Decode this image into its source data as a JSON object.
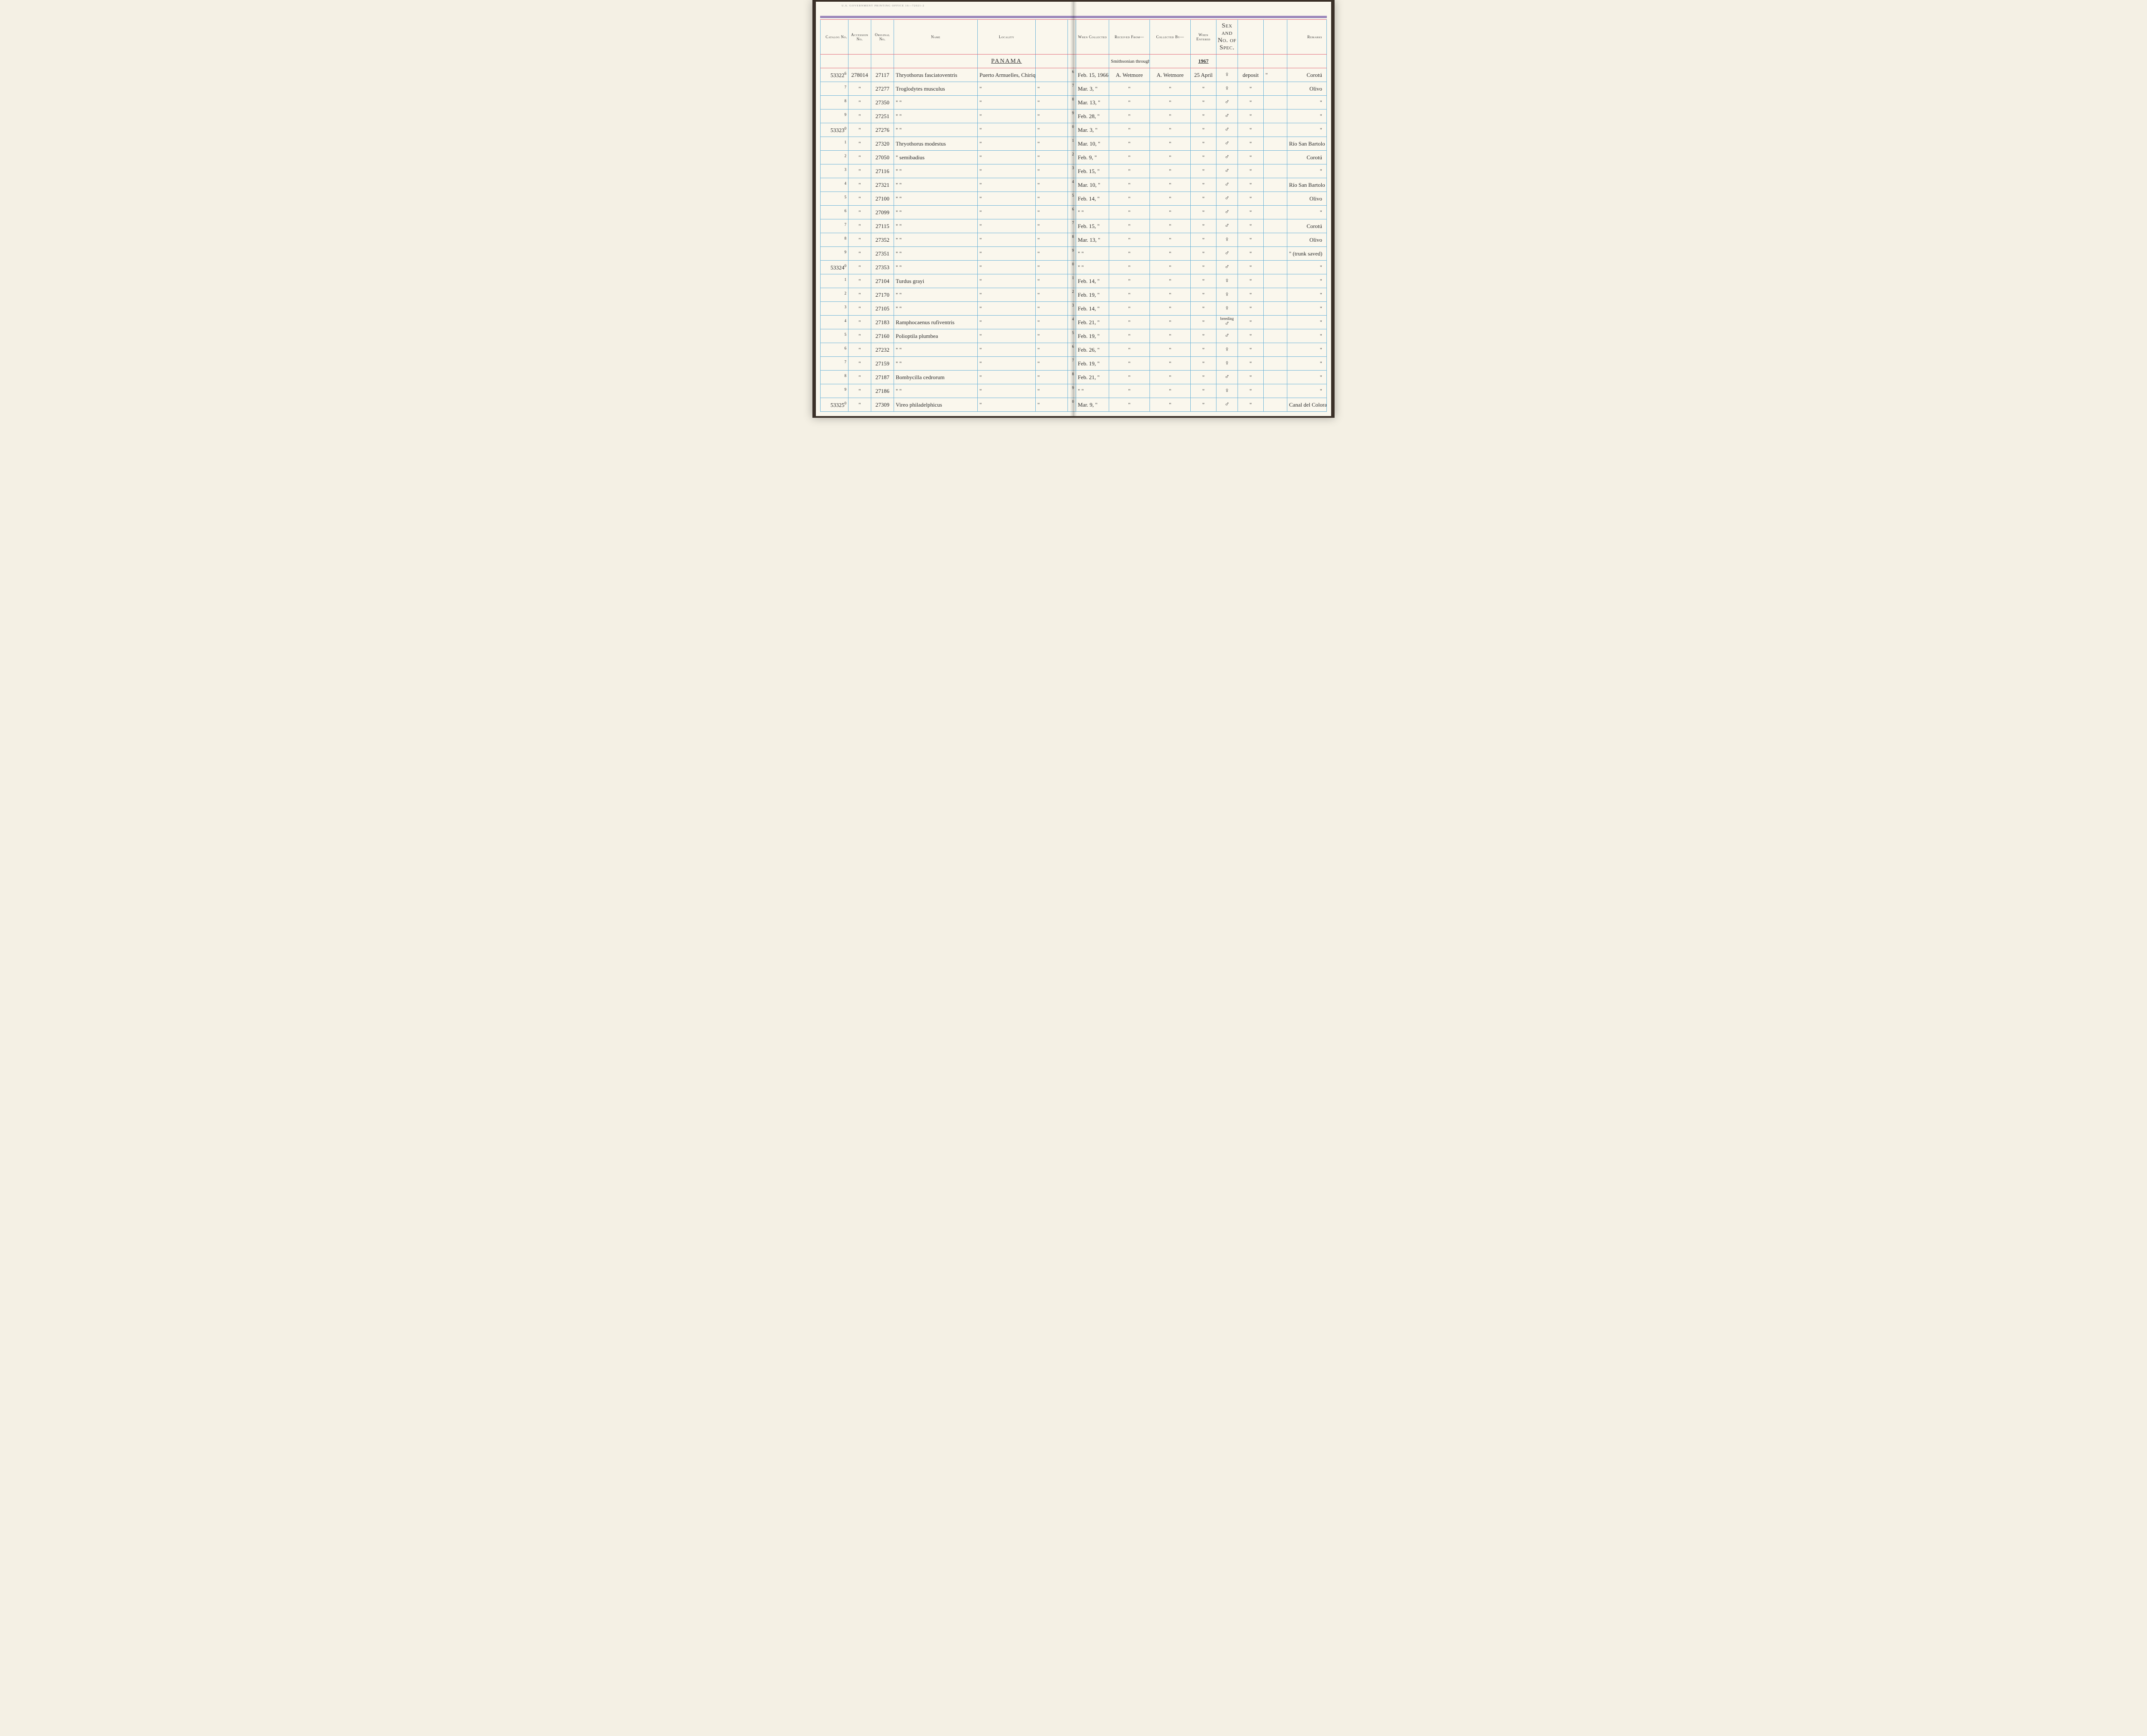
{
  "print_note": "U.S. Government Printing Office  16—72021-2",
  "columns": {
    "catalog": "Catalog No.",
    "accession": "Accession No.",
    "original": "Original No.",
    "name": "Name",
    "locality": "Locality",
    "collected": "When Collected",
    "received": "Received From—",
    "collby": "Collected By—",
    "entered": "When Entered",
    "sex": "Sex and No. of Spec.",
    "remarks": "Remarks"
  },
  "header_row": {
    "locality": "PANAMA",
    "received": "Smithsonian through",
    "entered": "1967"
  },
  "rows": [
    {
      "catalog": "53322",
      "catalog_sup": "6",
      "accession": "278014",
      "original": "27117",
      "name": "Thryothorus fasciatoventris",
      "locality": "Puerto Armuelles, Chiriquí",
      "blank1": "",
      "sup": "6",
      "collected": "Feb. 15, 1966",
      "received": "A. Wetmore",
      "collby": "A. Wetmore",
      "entered": "25 April",
      "sex": "♀",
      "blank2": "deposit",
      "blank3": "\"",
      "remarks": "Corotú"
    },
    {
      "catalog": "",
      "catalog_sup": "7",
      "accession": "\"",
      "original": "27277",
      "name": "Troglodytes musculus",
      "locality": "\"",
      "blank1": "\"",
      "sup": "7",
      "collected": "Mar. 3, \"",
      "received": "\"",
      "collby": "\"",
      "entered": "\"",
      "sex": "♀",
      "blank2": "\"",
      "blank3": "",
      "remarks": "Olivo"
    },
    {
      "catalog": "",
      "catalog_sup": "8",
      "accession": "\"",
      "original": "27350",
      "name": "\"        \"",
      "locality": "\"",
      "blank1": "\"",
      "sup": "8",
      "collected": "Mar. 13, \"",
      "received": "\"",
      "collby": "\"",
      "entered": "\"",
      "sex": "♂",
      "blank2": "\"",
      "blank3": "",
      "remarks": "\""
    },
    {
      "catalog": "",
      "catalog_sup": "9",
      "accession": "\"",
      "original": "27251",
      "name": "\"        \"",
      "locality": "\"",
      "blank1": "\"",
      "sup": "9",
      "collected": "Feb. 28, \"",
      "received": "\"",
      "collby": "\"",
      "entered": "\"",
      "sex": "♂",
      "blank2": "\"",
      "blank3": "",
      "remarks": "\""
    },
    {
      "catalog": "53323",
      "catalog_sup": "0",
      "accession": "\"",
      "original": "27276",
      "name": "\"        \"",
      "locality": "\"",
      "blank1": "\"",
      "sup": "0",
      "collected": "Mar. 3, \"",
      "received": "\"",
      "collby": "\"",
      "entered": "\"",
      "sex": "♂",
      "blank2": "\"",
      "blank3": "",
      "remarks": "\""
    },
    {
      "catalog": "",
      "catalog_sup": "1",
      "accession": "\"",
      "original": "27320",
      "name": "Thryothorus modestus",
      "locality": "\"",
      "blank1": "\"",
      "sup": "1",
      "collected": "Mar. 10, \"",
      "received": "\"",
      "collby": "\"",
      "entered": "\"",
      "sex": "♂",
      "blank2": "\"",
      "blank3": "",
      "remarks": "Río San Bartolo"
    },
    {
      "catalog": "",
      "catalog_sup": "2",
      "accession": "\"",
      "original": "27050",
      "name": "\"     semibadius",
      "locality": "\"",
      "blank1": "\"",
      "sup": "2",
      "collected": "Feb. 9, \"",
      "received": "\"",
      "collby": "\"",
      "entered": "\"",
      "sex": "♂",
      "blank2": "\"",
      "blank3": "",
      "remarks": "Corotú"
    },
    {
      "catalog": "",
      "catalog_sup": "3",
      "accession": "\"",
      "original": "27116",
      "name": "\"        \"",
      "locality": "\"",
      "blank1": "\"",
      "sup": "3",
      "collected": "Feb. 15, \"",
      "received": "\"",
      "collby": "\"",
      "entered": "\"",
      "sex": "♂",
      "blank2": "\"",
      "blank3": "",
      "remarks": "\""
    },
    {
      "catalog": "",
      "catalog_sup": "4",
      "accession": "\"",
      "original": "27321",
      "name": "\"        \"",
      "locality": "\"",
      "blank1": "\"",
      "sup": "4",
      "collected": "Mar. 10, \"",
      "received": "\"",
      "collby": "\"",
      "entered": "\"",
      "sex": "♂",
      "blank2": "\"",
      "blank3": "",
      "remarks": "Río San Bartolo"
    },
    {
      "catalog": "",
      "catalog_sup": "5",
      "accession": "\"",
      "original": "27100",
      "name": "\"        \"",
      "locality": "\"",
      "blank1": "\"",
      "sup": "5",
      "collected": "Feb. 14, \"",
      "received": "\"",
      "collby": "\"",
      "entered": "\"",
      "sex": "♂",
      "blank2": "\"",
      "blank3": "",
      "remarks": "Olivo"
    },
    {
      "catalog": "",
      "catalog_sup": "6",
      "accession": "\"",
      "original": "27099",
      "name": "\"        \"",
      "locality": "\"",
      "blank1": "\"",
      "sup": "6",
      "collected": "\"    \"",
      "received": "\"",
      "collby": "\"",
      "entered": "\"",
      "sex": "♂",
      "blank2": "\"",
      "blank3": "",
      "remarks": "\""
    },
    {
      "catalog": "",
      "catalog_sup": "7",
      "accession": "\"",
      "original": "27115",
      "name": "\"        \"",
      "locality": "\"",
      "blank1": "\"",
      "sup": "7",
      "collected": "Feb. 15, \"",
      "received": "\"",
      "collby": "\"",
      "entered": "\"",
      "sex": "♂",
      "blank2": "\"",
      "blank3": "",
      "remarks": "Corotú"
    },
    {
      "catalog": "",
      "catalog_sup": "8",
      "accession": "\"",
      "original": "27352",
      "name": "\"        \"",
      "locality": "\"",
      "blank1": "\"",
      "sup": "8",
      "collected": "Mar. 13, \"",
      "received": "\"",
      "collby": "\"",
      "entered": "\"",
      "sex": "♀",
      "blank2": "\"",
      "blank3": "",
      "remarks": "Olivo"
    },
    {
      "catalog": "",
      "catalog_sup": "9",
      "accession": "\"",
      "original": "27351",
      "name": "\"        \"",
      "locality": "\"",
      "blank1": "\"",
      "sup": "9",
      "collected": "\"    \"",
      "received": "\"",
      "collby": "\"",
      "entered": "\"",
      "sex": "♂",
      "blank2": "\"",
      "blank3": "",
      "remarks": "\"  (trunk saved)"
    },
    {
      "catalog": "53324",
      "catalog_sup": "0",
      "accession": "\"",
      "original": "27353",
      "name": "\"        \"",
      "locality": "\"",
      "blank1": "\"",
      "sup": "0",
      "collected": "\"    \"",
      "received": "\"",
      "collby": "\"",
      "entered": "\"",
      "sex": "♂",
      "blank2": "\"",
      "blank3": "",
      "remarks": "\""
    },
    {
      "catalog": "",
      "catalog_sup": "1",
      "accession": "\"",
      "original": "27104",
      "name": "Turdus grayi",
      "locality": "\"",
      "blank1": "\"",
      "sup": "1",
      "collected": "Feb. 14, \"",
      "received": "\"",
      "collby": "\"",
      "entered": "\"",
      "sex": "♀",
      "blank2": "\"",
      "blank3": "",
      "remarks": "\""
    },
    {
      "catalog": "",
      "catalog_sup": "2",
      "accession": "\"",
      "original": "27170",
      "name": "\"        \"",
      "locality": "\"",
      "blank1": "\"",
      "sup": "2",
      "collected": "Feb. 19, \"",
      "received": "\"",
      "collby": "\"",
      "entered": "\"",
      "sex": "♀",
      "blank2": "\"",
      "blank3": "",
      "remarks": "\""
    },
    {
      "catalog": "",
      "catalog_sup": "3",
      "accession": "\"",
      "original": "27105",
      "name": "\"        \"",
      "locality": "\"",
      "blank1": "\"",
      "sup": "3",
      "collected": "Feb. 14, \"",
      "received": "\"",
      "collby": "\"",
      "entered": "\"",
      "sex": "♀",
      "blank2": "\"",
      "blank3": "",
      "remarks": "\""
    },
    {
      "catalog": "",
      "catalog_sup": "4",
      "accession": "\"",
      "original": "27183",
      "name": "Ramphocaenus rufiventris",
      "locality": "\"",
      "blank1": "\"",
      "sup": "4",
      "collected": "Feb. 21, \"",
      "received": "\"",
      "collby": "\"",
      "entered": "\"",
      "sex": "♂",
      "sex_note": "breeding",
      "blank2": "\"",
      "blank3": "",
      "remarks": "\""
    },
    {
      "catalog": "",
      "catalog_sup": "5",
      "accession": "\"",
      "original": "27160",
      "name": "Polioptila plumbea",
      "locality": "\"",
      "blank1": "\"",
      "sup": "5",
      "collected": "Feb. 19, \"",
      "received": "\"",
      "collby": "\"",
      "entered": "\"",
      "sex": "♂",
      "blank2": "\"",
      "blank3": "",
      "remarks": "\""
    },
    {
      "catalog": "",
      "catalog_sup": "6",
      "accession": "\"",
      "original": "27232",
      "name": "\"        \"",
      "locality": "\"",
      "blank1": "\"",
      "sup": "6",
      "collected": "Feb. 26, \"",
      "received": "\"",
      "collby": "\"",
      "entered": "\"",
      "sex": "♀",
      "blank2": "\"",
      "blank3": "",
      "remarks": "\""
    },
    {
      "catalog": "",
      "catalog_sup": "7",
      "accession": "\"",
      "original": "27159",
      "name": "\"        \"",
      "locality": "\"",
      "blank1": "\"",
      "sup": "7",
      "collected": "Feb. 19, \"",
      "received": "\"",
      "collby": "\"",
      "entered": "\"",
      "sex": "♀",
      "blank2": "\"",
      "blank3": "",
      "remarks": "\""
    },
    {
      "catalog": "",
      "catalog_sup": "8",
      "accession": "\"",
      "original": "27187",
      "name": "Bombycilla cedrorum",
      "locality": "\"",
      "blank1": "\"",
      "sup": "8",
      "collected": "Feb. 21, \"",
      "received": "\"",
      "collby": "\"",
      "entered": "\"",
      "sex": "♂",
      "blank2": "\"",
      "blank3": "",
      "remarks": "\""
    },
    {
      "catalog": "",
      "catalog_sup": "9",
      "accession": "\"",
      "original": "27186",
      "name": "\"        \"",
      "locality": "\"",
      "blank1": "\"",
      "sup": "9",
      "collected": "\"    \"",
      "received": "\"",
      "collby": "\"",
      "entered": "\"",
      "sex": "♀",
      "blank2": "\"",
      "blank3": "",
      "remarks": "\""
    },
    {
      "catalog": "53325",
      "catalog_sup": "0",
      "accession": "\"",
      "original": "27309",
      "name": "Vireo philadelphicus",
      "locality": "\"",
      "blank1": "\"",
      "sup": "0",
      "collected": "Mar. 9, \"",
      "received": "\"",
      "collby": "\"",
      "entered": "\"",
      "sex": "♂",
      "blank2": "\"",
      "blank3": "",
      "remarks": "Canal del Colorado"
    }
  ],
  "style": {
    "page_bg": "#faf7ed",
    "rule_blue": "#6db4d8",
    "rule_red": "#e06b7a",
    "rule_purple": "#7a5fa8",
    "ink": "#2a2a2a",
    "header_font_pt": 9,
    "cell_font_pt": 13,
    "handwriting_font": "Brush Script MT, cursive"
  }
}
